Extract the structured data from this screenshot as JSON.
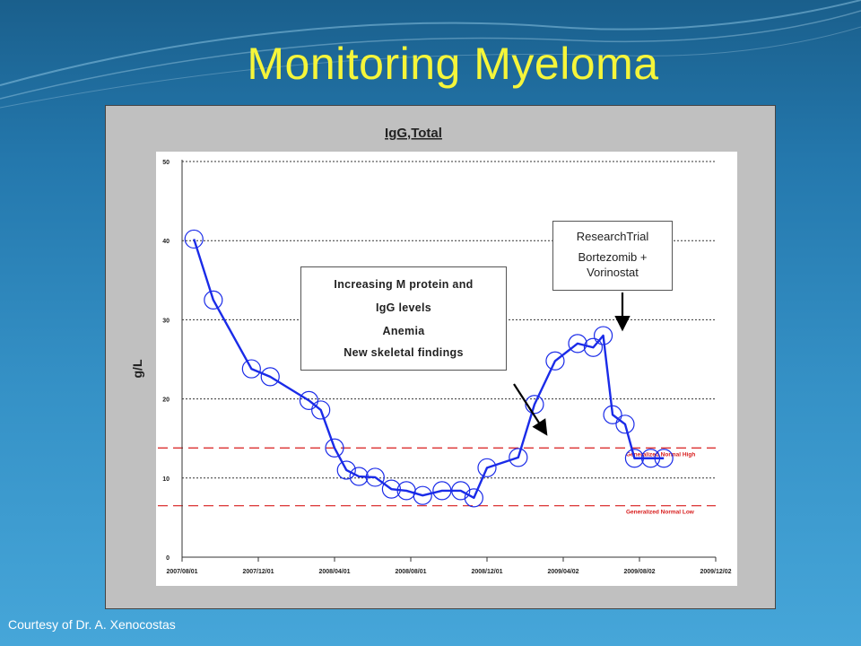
{
  "slide": {
    "title": "Monitoring Myeloma",
    "credit": "Courtesy of Dr. A. Xenocostas"
  },
  "colors": {
    "series": "#1a2be8",
    "reference_lines": "#d81c1c",
    "title_text": "#f5f53a"
  },
  "chart_data": {
    "type": "line",
    "title": "IgG,Total",
    "ylabel": "g/L",
    "xlabel": "",
    "ylim": [
      0,
      50
    ],
    "y_ticks": [
      0,
      10,
      20,
      30,
      40,
      50
    ],
    "x_ticks": [
      "2007/08/01",
      "2007/12/01",
      "2008/04/01",
      "2008/08/01",
      "2008/12/01",
      "2009/04/02",
      "2009/08/02",
      "2009/12/02"
    ],
    "xlim": [
      "2007/08/01",
      "2009/12/02"
    ],
    "grid": "horizontal dotted",
    "series": [
      {
        "x": [
          "2007/08/20",
          "2007/09/20",
          "2007/11/20",
          "2007/12/20",
          "2008/02/20",
          "2008/03/10",
          "2008/04/01",
          "2008/04/20",
          "2008/05/10",
          "2008/06/05",
          "2008/07/01",
          "2008/07/25",
          "2008/08/20",
          "2008/09/20",
          "2008/10/20",
          "2008/11/10",
          "2008/12/01",
          "2009/01/20",
          "2009/02/15",
          "2009/03/20",
          "2009/04/25",
          "2009/05/20",
          "2009/06/05",
          "2009/06/20",
          "2009/07/10",
          "2009/07/25",
          "2009/08/20",
          "2009/09/10"
        ],
        "values": [
          40.2,
          32.5,
          23.8,
          22.8,
          19.8,
          18.6,
          13.8,
          11.0,
          10.2,
          10.1,
          8.6,
          8.4,
          7.8,
          8.4,
          8.4,
          7.5,
          11.3,
          12.6,
          19.3,
          24.8,
          27.0,
          26.5,
          28.0,
          18.0,
          16.8,
          12.5,
          12.5,
          12.5
        ],
        "markers": "circle"
      }
    ],
    "reference_lines": [
      {
        "label": "Generalized Normal High",
        "value": 13.8
      },
      {
        "label": "Generalized Normal Low",
        "value": 6.5
      }
    ],
    "annotations": [
      {
        "lines": [
          "Increasing M protein and",
          "IgG levels",
          "Anemia",
          "New skeletal findings"
        ]
      },
      {
        "lines": [
          "ResearchTrial",
          "Bortezomib  +",
          "Vorinostat"
        ]
      }
    ]
  }
}
